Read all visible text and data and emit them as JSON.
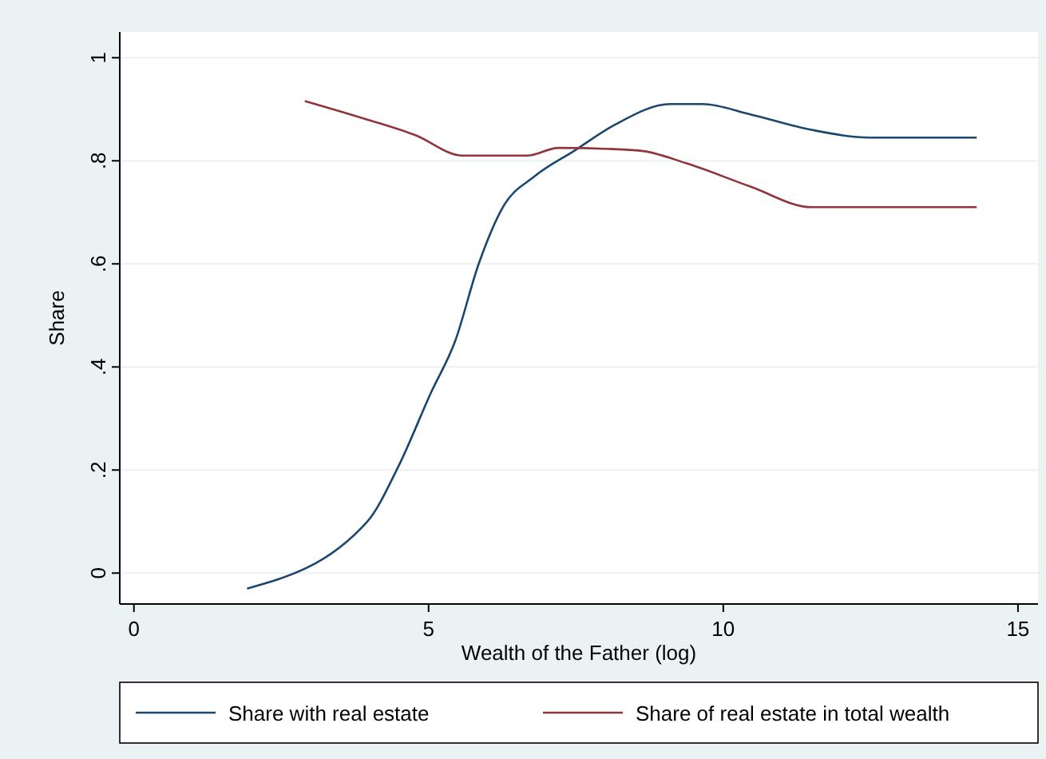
{
  "chart_data": {
    "type": "line",
    "xlabel": "Wealth of the Father (log)",
    "ylabel": "Share",
    "xlim": [
      -0.24,
      15.34
    ],
    "ylim": [
      -0.06,
      1.05
    ],
    "xticks": [
      0,
      5,
      10,
      15
    ],
    "yticks": [
      0,
      {
        "value": 0.2,
        "label": ".2"
      },
      {
        "value": 0.4,
        "label": ".4"
      },
      {
        "value": 0.6,
        "label": ".6"
      },
      {
        "value": 0.8,
        "label": ".8"
      },
      1
    ],
    "grid": "y",
    "legend": "bottom",
    "series": [
      {
        "name": "Share with real estate",
        "color": "#1a476f",
        "x": [
          1.92,
          3.96,
          4.5,
          5.04,
          5.45,
          5.85,
          6.26,
          6.8,
          7.48,
          8.16,
          9.1,
          9.65,
          10.46,
          11.5,
          12.5,
          14.3
        ],
        "values": [
          -0.03,
          0.1,
          0.21,
          0.35,
          0.45,
          0.6,
          0.71,
          0.77,
          0.82,
          0.87,
          0.91,
          0.91,
          0.89,
          0.86,
          0.845,
          0.845
        ]
      },
      {
        "name": "Share of real estate in total wealth",
        "color": "#90353b",
        "x": [
          2.9,
          3.96,
          4.77,
          5.58,
          6.67,
          7.2,
          8.56,
          9.38,
          10.46,
          11.5,
          12.36,
          14.3
        ],
        "values": [
          0.916,
          0.88,
          0.85,
          0.81,
          0.81,
          0.825,
          0.82,
          0.795,
          0.75,
          0.71,
          0.71,
          0.71
        ]
      }
    ]
  }
}
